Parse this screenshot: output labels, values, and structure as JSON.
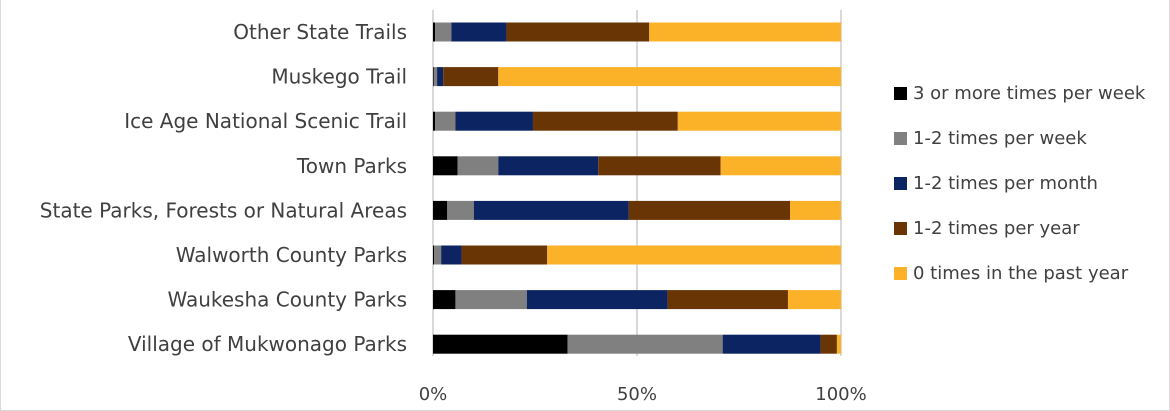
{
  "chart_data": {
    "type": "bar",
    "orientation": "horizontal",
    "stacked": "percent",
    "title": "",
    "categories": [
      "Other State Trails",
      "Muskego Trail",
      "Ice Age National Scenic Trail",
      "Town Parks",
      "State Parks, Forests or Natural Areas",
      "Walworth County Parks",
      "Waukesha County Parks",
      "Village of Mukwonago Parks"
    ],
    "series": [
      {
        "name": "3 or more times per week",
        "color": "#000000",
        "values": [
          0.5,
          0.2,
          0.5,
          6,
          3.5,
          0.3,
          5.5,
          33
        ]
      },
      {
        "name": "1-2 times per week",
        "color": "#808080",
        "values": [
          4,
          0.8,
          5,
          10,
          6.5,
          1.7,
          17.5,
          38
        ]
      },
      {
        "name": "1-2 times per month",
        "color": "#0c2461",
        "values": [
          13.5,
          1.5,
          19,
          24.5,
          38,
          5,
          34.5,
          24
        ]
      },
      {
        "name": "1-2 times per year",
        "color": "#6a3504",
        "values": [
          35,
          13.5,
          35.5,
          30,
          39.5,
          21,
          29.5,
          4
        ]
      },
      {
        "name": "0 times in the past year",
        "color": "#fbb128",
        "values": [
          47,
          84,
          40,
          29.5,
          12.5,
          72,
          13,
          1
        ]
      }
    ],
    "x_axis": {
      "ticks": [
        "0%",
        "50%",
        "100%"
      ],
      "range": [
        0,
        100
      ]
    },
    "grid": true,
    "legend_position": "right"
  }
}
